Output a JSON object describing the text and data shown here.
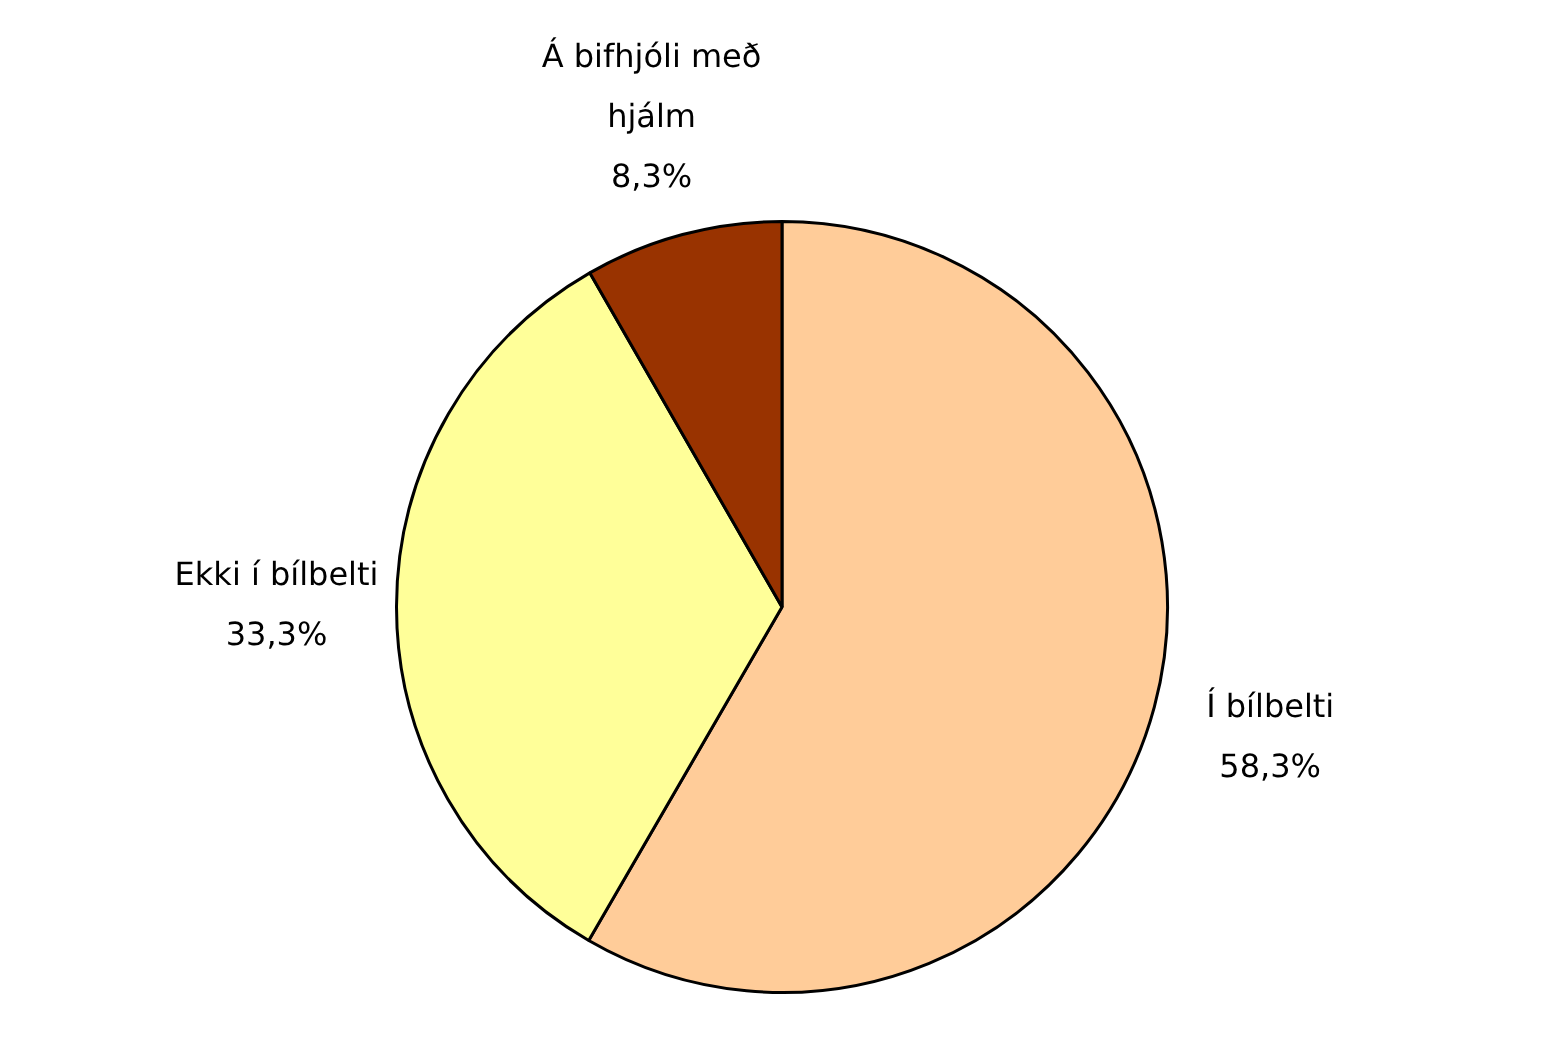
{
  "chart_data": {
    "type": "pie",
    "categories": [
      "Í bílbelti",
      "Ekki í bílbelti",
      "Á bifhjóli með hjálm"
    ],
    "values": [
      58.3,
      33.3,
      8.3
    ],
    "colors": [
      "#ffcc99",
      "#ffff99",
      "#993300"
    ],
    "value_labels": [
      "58,3%",
      "33,3%",
      "8,3%"
    ],
    "legend": false
  }
}
